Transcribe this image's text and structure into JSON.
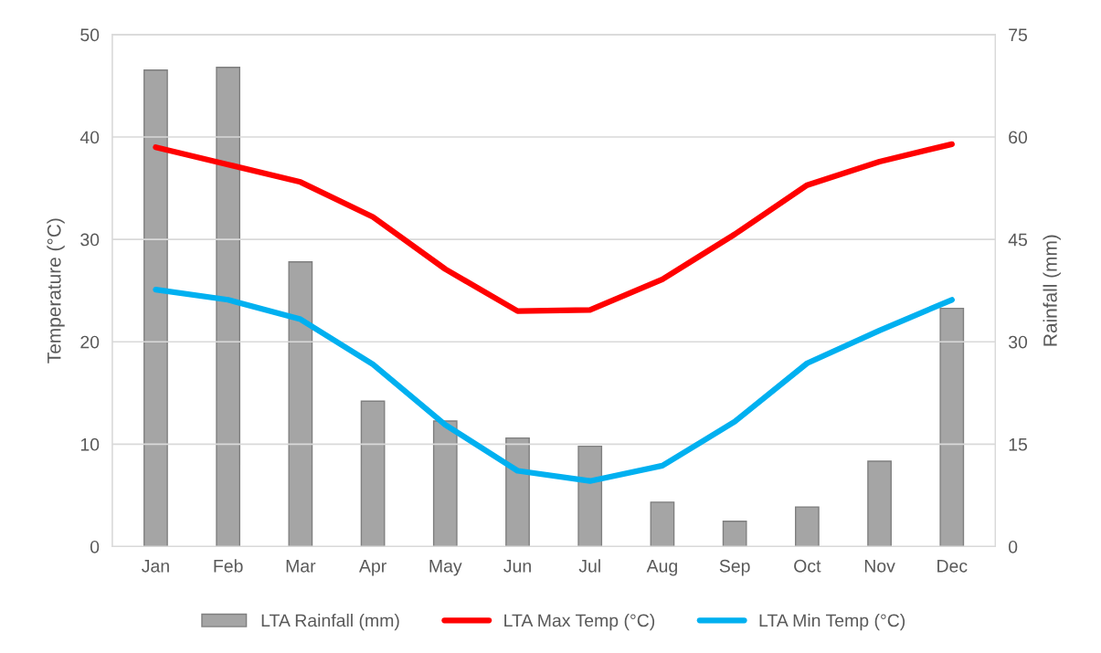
{
  "chart_data": {
    "type": "bar",
    "categories": [
      "Jan",
      "Feb",
      "Mar",
      "Apr",
      "May",
      "Jun",
      "Jul",
      "Aug",
      "Sep",
      "Oct",
      "Nov",
      "Dec"
    ],
    "ylabel": "Temperature (°C)",
    "y2label": "Rainfall (mm)",
    "ylim": [
      0,
      50
    ],
    "yticks": [
      0,
      10,
      20,
      30,
      40,
      50
    ],
    "y2lim": [
      0,
      75
    ],
    "y2ticks": [
      0,
      15,
      30,
      45,
      60,
      75
    ],
    "grid": "y",
    "legend": "bottom",
    "marker": "none",
    "line_style": "solid",
    "series": [
      {
        "name": "LTA Rainfall (mm)",
        "axis": "y2",
        "color": "#a5a5a5",
        "values": [
          69.8,
          70.2,
          41.7,
          21.3,
          18.4,
          15.9,
          14.7,
          6.5,
          3.7,
          5.8,
          12.5,
          34.9
        ]
      },
      {
        "name": "LTA Max Temp (°C)",
        "type": "line",
        "color": "#ff0000",
        "values": [
          39.0,
          37.3,
          35.6,
          32.2,
          27.1,
          23.0,
          23.1,
          26.1,
          30.5,
          35.3,
          37.6,
          39.3
        ]
      },
      {
        "name": "LTA Min Temp (°C)",
        "type": "line",
        "color": "#00b0f0",
        "values": [
          25.1,
          24.1,
          22.2,
          17.8,
          11.9,
          7.4,
          6.4,
          7.9,
          12.2,
          17.9,
          21.1,
          24.1
        ]
      }
    ]
  }
}
